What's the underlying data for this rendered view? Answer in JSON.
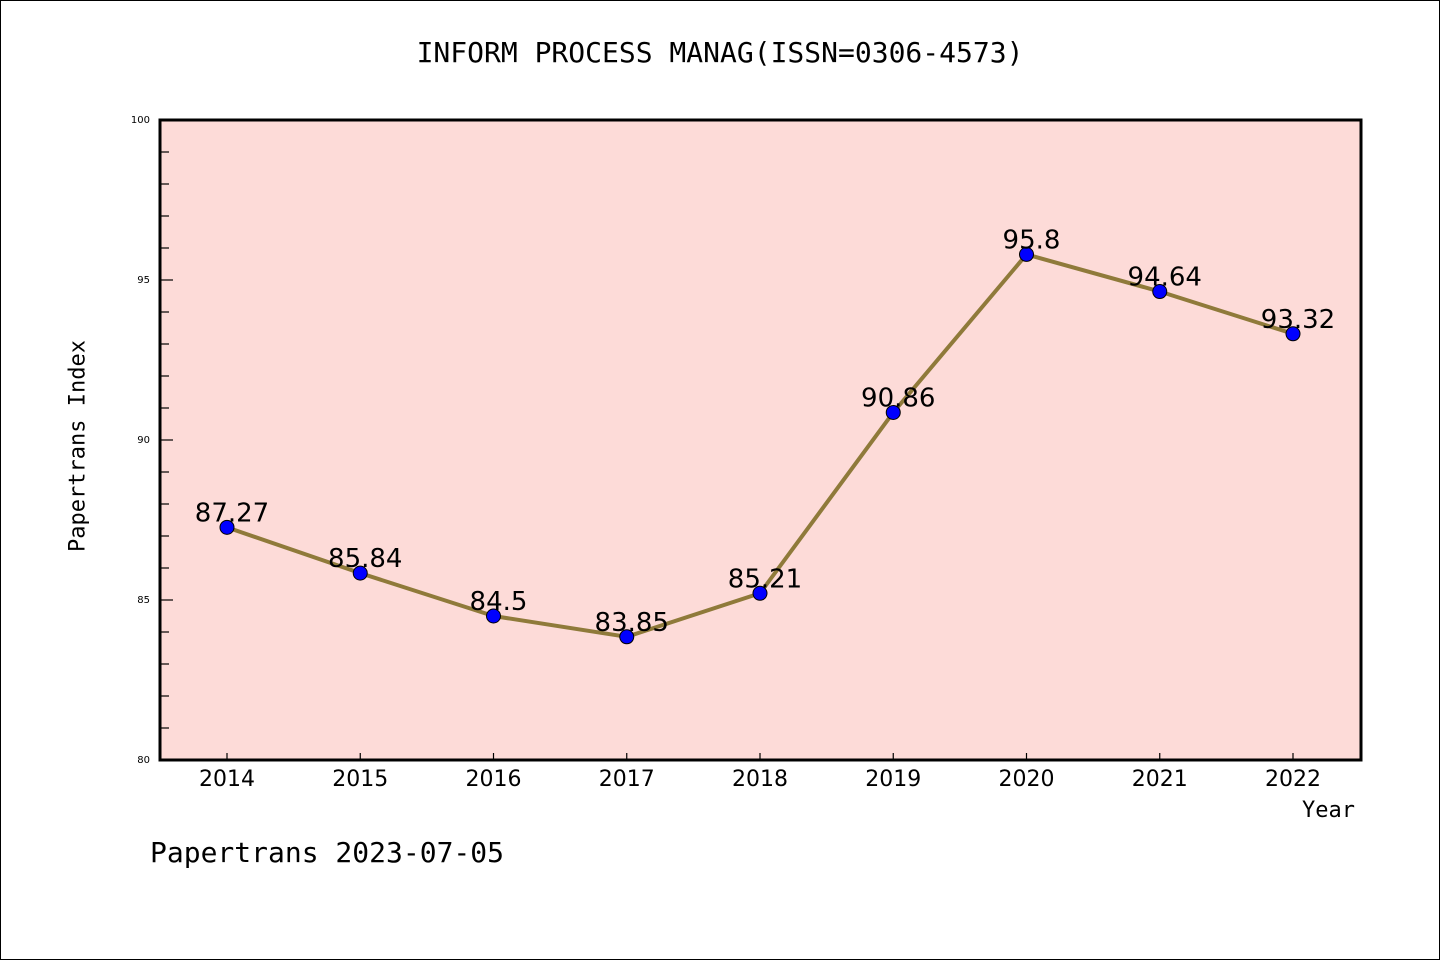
{
  "chart_data": {
    "type": "line",
    "title": "INFORM PROCESS MANAG(ISSN=0306-4573)",
    "xlabel": "Year",
    "ylabel": "Papertrans Index",
    "x": [
      "2014",
      "2015",
      "2016",
      "2017",
      "2018",
      "2019",
      "2020",
      "2021",
      "2022"
    ],
    "series": [
      {
        "name": "Papertrans Index",
        "values": [
          87.27,
          85.84,
          84.5,
          83.85,
          85.21,
          90.86,
          95.8,
          94.64,
          93.32
        ]
      }
    ],
    "data_labels": [
      "87.27",
      "85.84",
      "84.5",
      "83.85",
      "85.21",
      "90.86",
      "95.8",
      "94.64",
      "93.32"
    ],
    "ylim": [
      80,
      100
    ],
    "yticks": [
      "80",
      "85",
      "90",
      "95",
      "100"
    ],
    "grid": false,
    "colors": {
      "line": "#8f7a3a",
      "marker": "#0000ff",
      "plot_bg": "#fddbd8"
    }
  },
  "footer": "Papertrans 2023-07-05"
}
